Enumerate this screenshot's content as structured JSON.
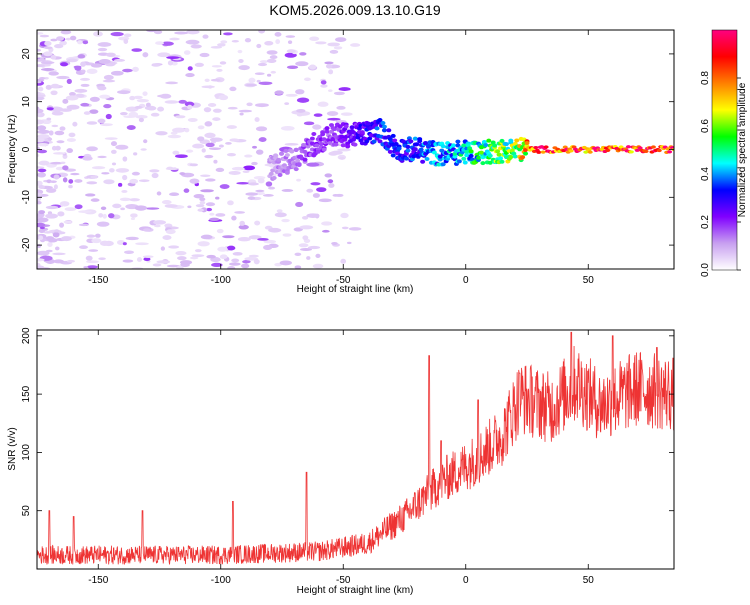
{
  "title": "KOM5.2026.009.13.10.G19",
  "chart_data": [
    {
      "type": "heatmap",
      "xlabel": "Height of straight line (km)",
      "ylabel": "Frequency (Hz)",
      "xlim": [
        -175,
        85
      ],
      "ylim": [
        -25,
        25
      ],
      "x_ticks": [
        -150,
        -100,
        -50,
        0,
        50
      ],
      "y_ticks": [
        -20,
        -10,
        0,
        10,
        20
      ],
      "colorbar": {
        "label": "Normalized spectral amplitude",
        "range": [
          0,
          1
        ],
        "ticks": [
          0.0,
          0.2,
          0.4,
          0.6,
          0.8
        ],
        "colors": [
          "#ffffff",
          "#c8a0f0",
          "#8000ff",
          "#0000ff",
          "#00ffff",
          "#00ff00",
          "#ffff00",
          "#ff8000",
          "#ff0000",
          "#ff0080"
        ]
      },
      "ridge": [
        {
          "x": -80,
          "y": -4,
          "amp": 0.12
        },
        {
          "x": -70,
          "y": -2,
          "amp": 0.15
        },
        {
          "x": -62,
          "y": 1,
          "amp": 0.2
        },
        {
          "x": -55,
          "y": 3,
          "amp": 0.18
        },
        {
          "x": -45,
          "y": 3,
          "amp": 0.25
        },
        {
          "x": -35,
          "y": 4,
          "amp": 0.35
        },
        {
          "x": -28,
          "y": 0,
          "amp": 0.3
        },
        {
          "x": -20,
          "y": 0,
          "amp": 0.35
        },
        {
          "x": -10,
          "y": -1,
          "amp": 0.4
        },
        {
          "x": 0,
          "y": -0.5,
          "amp": 0.45
        },
        {
          "x": 10,
          "y": -0.5,
          "amp": 0.55
        },
        {
          "x": 20,
          "y": 0,
          "amp": 0.6
        },
        {
          "x": 30,
          "y": 0,
          "amp": 0.9
        },
        {
          "x": 85,
          "y": 0,
          "amp": 0.95
        }
      ]
    },
    {
      "type": "line",
      "xlabel": "Height of straight line (km)",
      "ylabel": "SNR (v/v)",
      "xlim": [
        -175,
        85
      ],
      "ylim": [
        0,
        205
      ],
      "x_ticks": [
        -150,
        -100,
        -50,
        0,
        50
      ],
      "y_ticks": [
        50,
        100,
        150,
        200
      ],
      "series_color": "#ee3333",
      "trend": [
        {
          "x": -175,
          "y": 12
        },
        {
          "x": -150,
          "y": 12
        },
        {
          "x": -100,
          "y": 12
        },
        {
          "x": -60,
          "y": 15
        },
        {
          "x": -40,
          "y": 22
        },
        {
          "x": -25,
          "y": 45
        },
        {
          "x": -10,
          "y": 75
        },
        {
          "x": 5,
          "y": 95
        },
        {
          "x": 15,
          "y": 115
        },
        {
          "x": 22,
          "y": 148
        },
        {
          "x": 35,
          "y": 138
        },
        {
          "x": 45,
          "y": 160
        },
        {
          "x": 55,
          "y": 140
        },
        {
          "x": 70,
          "y": 155
        },
        {
          "x": 85,
          "y": 150
        }
      ],
      "spikes": [
        {
          "x": -170,
          "y": 50
        },
        {
          "x": -160,
          "y": 45
        },
        {
          "x": -132,
          "y": 50
        },
        {
          "x": -95,
          "y": 58
        },
        {
          "x": -65,
          "y": 83
        },
        {
          "x": -15,
          "y": 183
        },
        {
          "x": -10,
          "y": 110
        },
        {
          "x": 5,
          "y": 145
        },
        {
          "x": 22,
          "y": 168
        },
        {
          "x": 43,
          "y": 203
        },
        {
          "x": 60,
          "y": 200
        },
        {
          "x": 78,
          "y": 190
        }
      ]
    }
  ]
}
